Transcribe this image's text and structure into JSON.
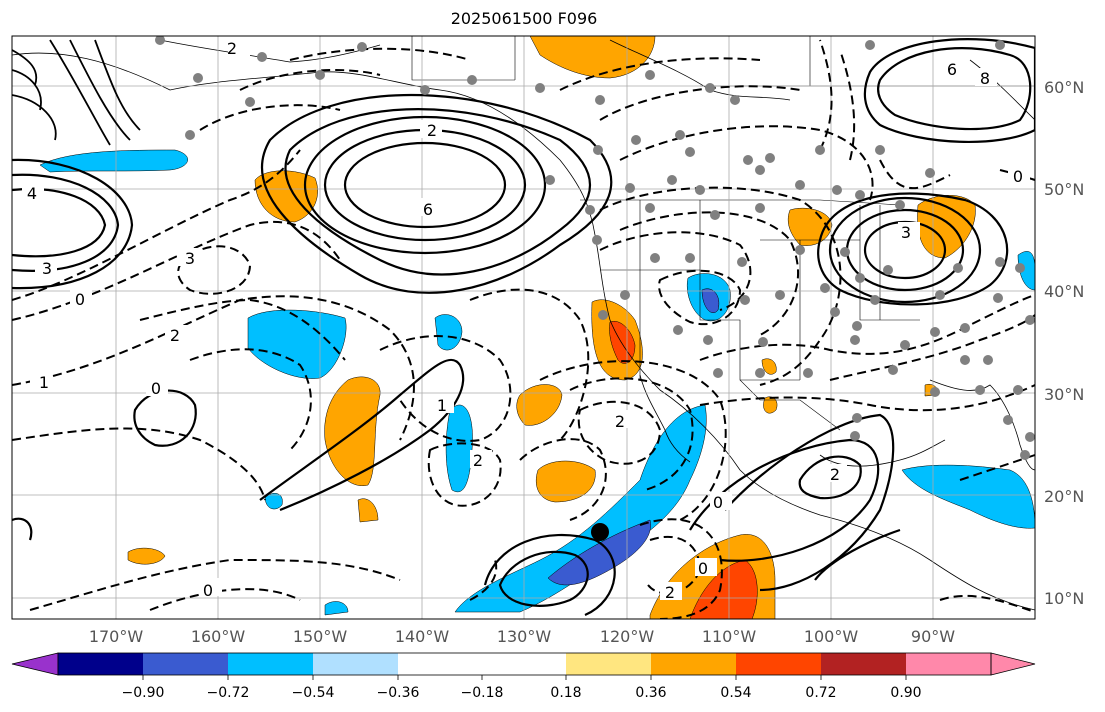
{
  "title": "2025061500 F096",
  "lon_labels": [
    "170°W",
    "160°W",
    "150°W",
    "140°W",
    "130°W",
    "120°W",
    "110°W",
    "100°W",
    "90°W"
  ],
  "lat_labels": [
    "60°N",
    "50°N",
    "40°N",
    "30°N",
    "20°N",
    "10°N"
  ],
  "colorbar": {
    "tick_labels": [
      "−0.90",
      "−0.72",
      "−0.54",
      "−0.36",
      "−0.18",
      "0.18",
      "0.36",
      "0.54",
      "0.72",
      "0.90"
    ],
    "colors": [
      "#9932cc",
      "#00008b",
      "#3a5bd0",
      "#00bfff",
      "#b0e0ff",
      "#ffffff",
      "#ffe680",
      "#ffa500",
      "#ff4500",
      "#b22222",
      "#ff88aa"
    ]
  },
  "shading_colors": {
    "blue": "#00bfff",
    "dark_blue": "#3a5bd0",
    "orange": "#ffa500",
    "red_orange": "#ff4500"
  },
  "contour_labels": [
    "2",
    "3",
    "4",
    "6",
    "2",
    "3",
    "0",
    "1",
    "2",
    "0",
    "0",
    "2",
    "2",
    "0",
    "2",
    "0",
    "2",
    "8",
    "6",
    "3",
    "0",
    "1"
  ],
  "station_marker": "black dot near 16°N 122°W"
}
